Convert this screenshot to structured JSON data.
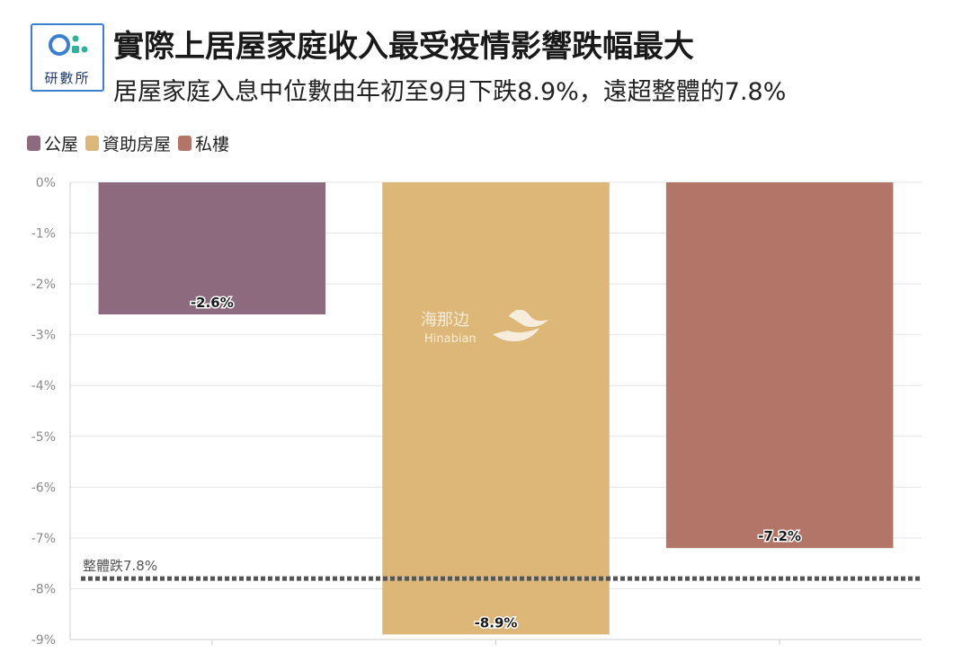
{
  "header": {
    "logo_text": "研數所",
    "title": "實際上居屋家庭收入最受疫情影響跌幅最大",
    "subtitle": "居屋家庭入息中位數由年初至9月下跌8.9%，遠超整體的7.8%"
  },
  "watermark": {
    "cn": "海那边",
    "en": "Hinabian"
  },
  "chart_data": {
    "type": "bar",
    "categories": [
      "公屋",
      "資助房屋",
      "私樓"
    ],
    "values": [
      -2.6,
      -8.9,
      -7.2
    ],
    "value_labels": [
      "-2.6%",
      "-8.9%",
      "-7.2%"
    ],
    "colors": [
      "#8e6a7e",
      "#dcb777",
      "#b37567"
    ],
    "legend": [
      "公屋",
      "資助房屋",
      "私樓"
    ],
    "legend_position": "top-left",
    "ylim": [
      -9,
      0
    ],
    "yticks": [
      "0%",
      "-1%",
      "-2%",
      "-3%",
      "-4%",
      "-5%",
      "-6%",
      "-7%",
      "-8%",
      "-9%"
    ],
    "reference_line": {
      "value": -7.8,
      "label": "整體跌7.8%",
      "style": "dotted",
      "color": "#555555"
    },
    "grid": true
  }
}
